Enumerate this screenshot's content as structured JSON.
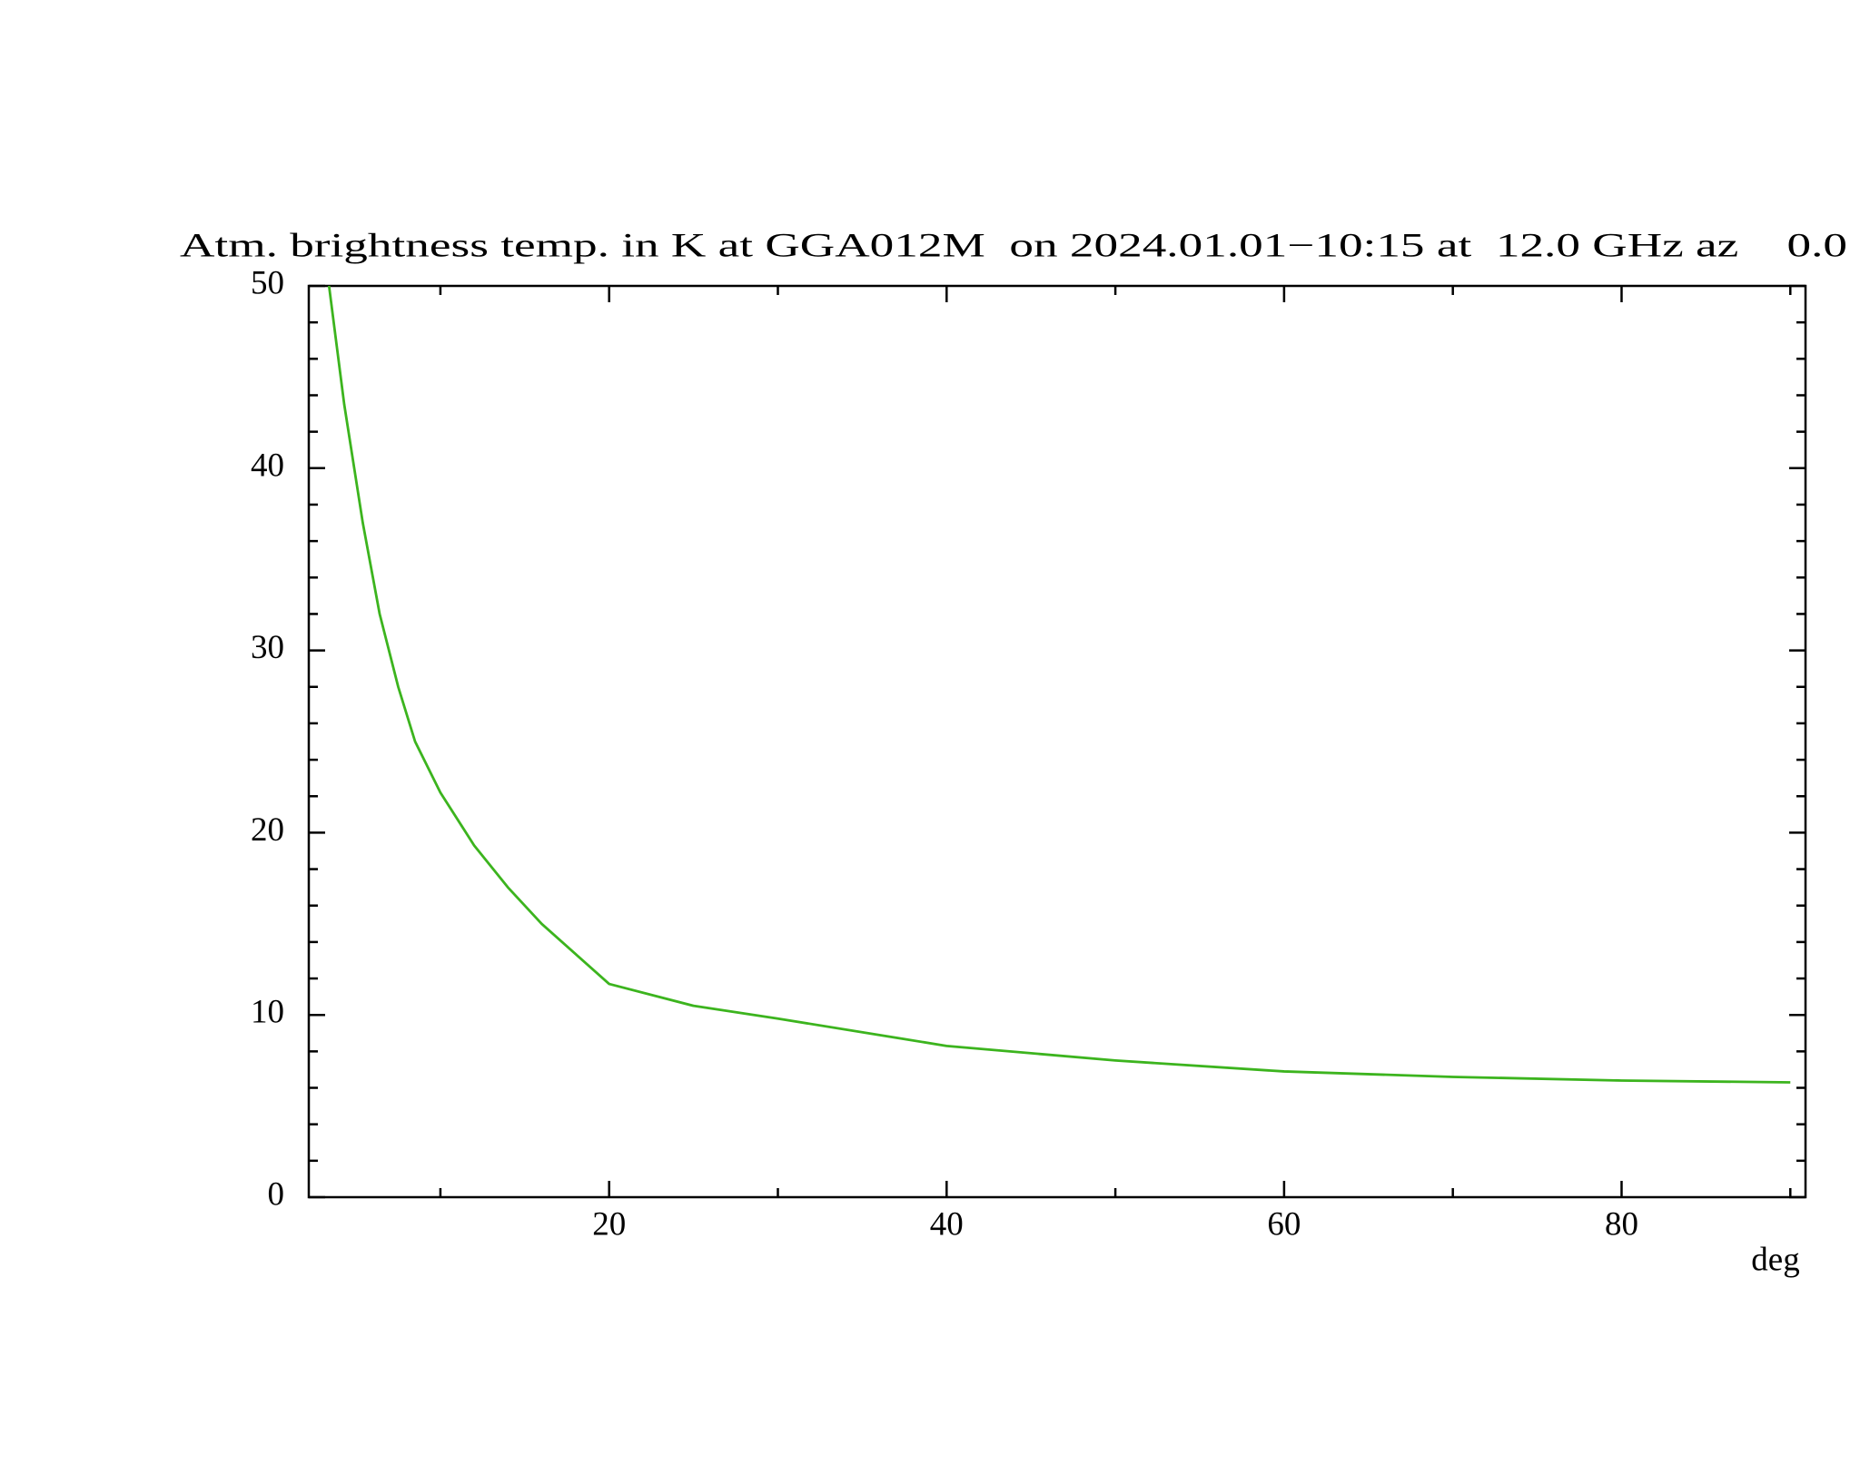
{
  "chart_data": {
    "type": "line",
    "title": "Atm. brightness temp. in K at GGA012M  on 2024.01.01−10:15 at  12.0 GHz az    0.0",
    "x_label": "deg",
    "x": [
      3.4,
      4.3,
      5.4,
      6.4,
      7.5,
      8.5,
      10,
      12,
      14,
      16,
      20,
      25,
      30,
      40,
      50,
      60,
      70,
      80,
      90
    ],
    "series": [
      {
        "color": "#3cb41e",
        "values": [
          50,
          43.5,
          37,
          32,
          28,
          25,
          22.2,
          19.3,
          17,
          15,
          11.7,
          10.5,
          9.8,
          8.3,
          7.5,
          6.9,
          6.6,
          6.4,
          6.3
        ]
      }
    ],
    "xlim": [
      2.2,
      90.9
    ],
    "xticks": [
      20,
      40,
      60,
      80
    ],
    "xminorticks": [
      10,
      30,
      50,
      70,
      90
    ],
    "ylim": [
      0,
      50
    ],
    "yticks": [
      0,
      10,
      20,
      30,
      40,
      50
    ],
    "yminorticks": [
      2,
      4,
      6,
      8,
      12,
      14,
      16,
      18,
      22,
      24,
      26,
      28,
      32,
      34,
      36,
      38,
      42,
      44,
      46,
      48
    ],
    "grid": false
  }
}
